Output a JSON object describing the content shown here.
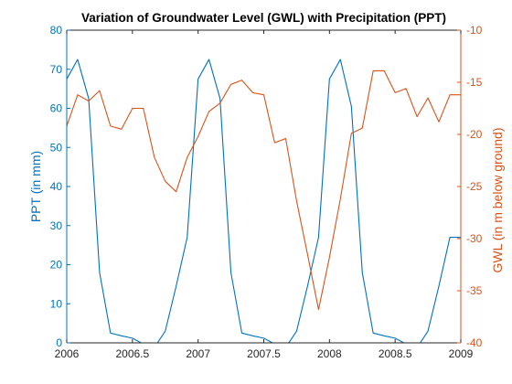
{
  "chart_data": {
    "type": "line",
    "title": "Variation of Groundwater Level (GWL) with Precipitation (PPT)",
    "xlabel": "",
    "xlim": [
      2006,
      2009
    ],
    "xticks": [
      2006,
      2006.5,
      2007,
      2007.5,
      2008,
      2008.5,
      2009
    ],
    "xtick_labels": [
      "2006",
      "2006.5",
      "2007",
      "2007.5",
      "2008",
      "2008.5",
      "2009"
    ],
    "grid": false,
    "legend": "none",
    "axes": {
      "left": {
        "label": "PPT (in mm)",
        "ylim": [
          0,
          80
        ],
        "ticks": [
          0,
          10,
          20,
          30,
          40,
          50,
          60,
          70,
          80
        ],
        "tick_labels": [
          "0",
          "10",
          "20",
          "30",
          "40",
          "50",
          "60",
          "70",
          "80"
        ],
        "color": "#0072BD"
      },
      "right": {
        "label": "GWL (in m below ground)",
        "ylim": [
          -40,
          -10
        ],
        "ticks": [
          -40,
          -35,
          -30,
          -25,
          -20,
          -15,
          -10
        ],
        "tick_labels": [
          "-40",
          "-35",
          "-30",
          "-25",
          "-20",
          "-15",
          "-10"
        ],
        "color": "#D95319"
      }
    },
    "series": [
      {
        "axis": "left",
        "color": "#0072BD",
        "x": [
          2006.0,
          2006.083,
          2006.167,
          2006.25,
          2006.333,
          2006.417,
          2006.5,
          2006.583,
          2006.667,
          2006.75,
          2006.833,
          2006.917,
          2007.0,
          2007.083,
          2007.167,
          2007.25,
          2007.333,
          2007.417,
          2007.5,
          2007.583,
          2007.667,
          2007.75,
          2007.833,
          2007.917,
          2008.0,
          2008.083,
          2008.167,
          2008.25,
          2008.333,
          2008.417,
          2008.5,
          2008.583,
          2008.667,
          2008.75,
          2008.833,
          2008.917,
          2009.0
        ],
        "y": [
          67.5,
          72.5,
          62.5,
          18,
          2.5,
          1.8,
          1.2,
          -0.3,
          -1.2,
          3,
          14.5,
          27,
          67.5,
          72.5,
          62.5,
          18,
          2.5,
          1.8,
          1.2,
          -0.3,
          -1.2,
          3,
          14.5,
          27,
          67.5,
          72.5,
          60.5,
          18,
          2.5,
          1.8,
          1.2,
          -0.3,
          -1.2,
          3,
          14.5,
          27,
          27
        ]
      },
      {
        "axis": "right",
        "color": "#D95319",
        "x": [
          2006.0,
          2006.083,
          2006.167,
          2006.25,
          2006.333,
          2006.417,
          2006.5,
          2006.583,
          2006.667,
          2006.75,
          2006.833,
          2006.917,
          2007.0,
          2007.083,
          2007.167,
          2007.25,
          2007.333,
          2007.417,
          2007.5,
          2007.583,
          2007.667,
          2007.75,
          2007.833,
          2007.917,
          2008.0,
          2008.083,
          2008.167,
          2008.25,
          2008.333,
          2008.417,
          2008.5,
          2008.583,
          2008.667,
          2008.75,
          2008.833,
          2008.917,
          2009.0
        ],
        "y": [
          -19.2,
          -16.2,
          -16.8,
          -15.8,
          -19.2,
          -19.5,
          -17.5,
          -17.5,
          -22.2,
          -24.5,
          -25.5,
          -22.2,
          -20.2,
          -17.8,
          -17,
          -15.2,
          -14.8,
          -16,
          -16.2,
          -20.8,
          -20.4,
          -26.4,
          -31.5,
          -36.8,
          -31.8,
          -26.2,
          -19.9,
          -19.4,
          -13.9,
          -13.9,
          -16,
          -15.6,
          -18.3,
          -16.5,
          -18.8,
          -16.2,
          -16.2
        ]
      }
    ]
  }
}
